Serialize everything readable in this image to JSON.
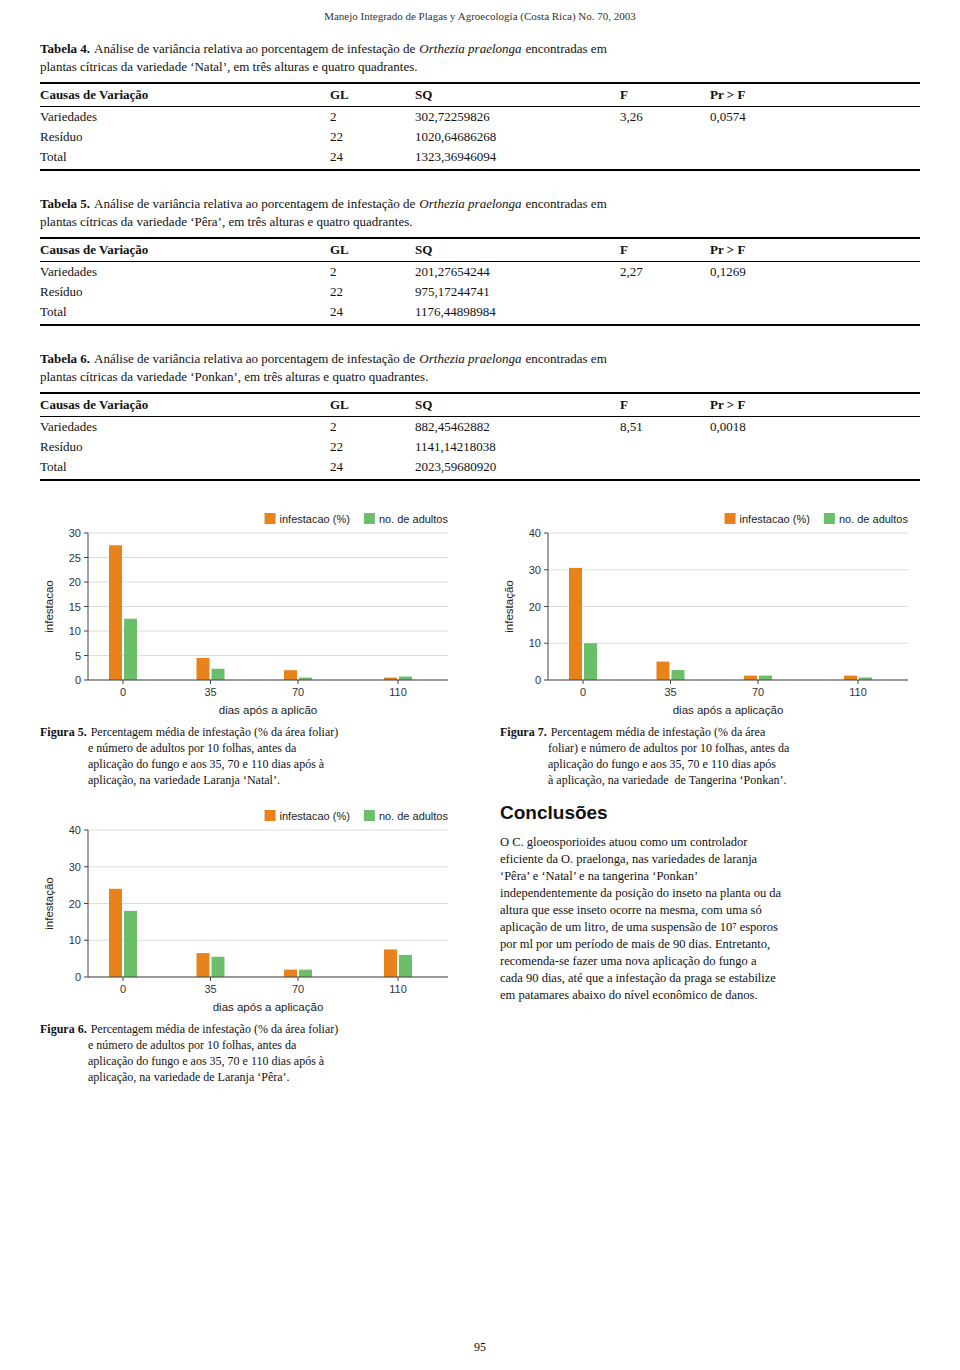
{
  "header": "Manejo Integrado de Plagas y Agroecología (Costa Rica) No. 70, 2003",
  "tables": [
    {
      "title_bold": "Tabela 4.",
      "title_text": "Análise de variância relativa ao porcentagem de infestação de",
      "title_italic": "Orthezia praelonga",
      "title_after": "encontradas em",
      "title_line2": "plantas cítricas da variedade ‘Natal’, em três alturas e quatro quadrantes.",
      "headers": [
        "Causas de Variação",
        "GL",
        "SQ",
        "F",
        "Pr > F"
      ],
      "rows": [
        [
          "Variedades",
          "2",
          "302,72259826",
          "3,26",
          "0,0574"
        ],
        [
          "Resíduo",
          "22",
          "1020,64686268",
          null,
          null
        ],
        [
          "Total",
          "24",
          "1323,36946094",
          null,
          null
        ]
      ]
    },
    {
      "title_bold": "Tabela 5.",
      "title_text": "Análise de variância relativa ao porcentagem de infestação de",
      "title_italic": "Orthezia praelonga",
      "title_after": "encontradas em",
      "title_line2": "plantas cítricas da variedade ‘Pêra’, em três alturas e quatro quadrantes.",
      "headers": [
        "Causas de Variação",
        "GL",
        "SQ",
        "F",
        "Pr > F"
      ],
      "rows": [
        [
          "Variedades",
          "2",
          "201,27654244",
          "2,27",
          "0,1269"
        ],
        [
          "Resíduo",
          "22",
          "975,17244741",
          null,
          null
        ],
        [
          "Total",
          "24",
          "1176,44898984",
          null,
          null
        ]
      ]
    },
    {
      "title_bold": "Tabela 6.",
      "title_text": "Análise de variância relativa ao porcentagem de infestação de",
      "title_italic": "Orthezia praelonga",
      "title_after": "encontradas em",
      "title_line2": "plantas cítricas da variedade ‘Ponkan’, em três alturas e quatro quadrantes.",
      "headers": [
        "Causas de Variação",
        "GL",
        "SQ",
        "F",
        "Pr > F"
      ],
      "rows": [
        [
          "Variedades",
          "2",
          "882,45462882",
          "8,51",
          "0,0018"
        ],
        [
          "Resíduo",
          "22",
          "1141,14218038",
          null,
          null
        ],
        [
          "Total",
          "24",
          "2023,59680920",
          null,
          null
        ]
      ]
    }
  ],
  "chart_data": [
    {
      "type": "bar",
      "xlabel": "dias após a aplicão",
      "ylabel": "infestacao",
      "x": [
        0,
        35,
        70,
        110
      ],
      "xlim": [
        -14,
        130
      ],
      "xticks": [
        0,
        35,
        70,
        110
      ],
      "ylim": [
        0,
        30
      ],
      "yticks": [
        0,
        5,
        10,
        15,
        20,
        25,
        30
      ],
      "grid": true,
      "legend": "upper right",
      "series": [
        {
          "name": "infestacao (%)",
          "color": "#E8821A",
          "values": [
            27.5,
            4.5,
            2.0,
            0.5
          ]
        },
        {
          "name": "no. de adultos",
          "color": "#6BBF6B",
          "values": [
            12.5,
            2.3,
            0.5,
            0.7
          ]
        }
      ],
      "caption_bold": "Figura 5.",
      "caption_lines": [
        "Percentagem média de infestação (% da área foliar)",
        "e número de adultos por 10 folhas, antes da",
        "aplicação do fungo e aos 35, 70 e 110 dias após à",
        "aplicação, na variedade Laranja ‘Natal’."
      ]
    },
    {
      "type": "bar",
      "xlabel": "dias após a aplicação",
      "ylabel": "infestação",
      "x": [
        0,
        35,
        70,
        110
      ],
      "xlim": [
        -14,
        130
      ],
      "xticks": [
        0,
        35,
        70,
        110
      ],
      "ylim": [
        0,
        40
      ],
      "yticks": [
        0,
        10,
        20,
        30,
        40
      ],
      "grid": true,
      "legend": "upper right",
      "series": [
        {
          "name": "infestacao (%)",
          "color": "#E8821A",
          "values": [
            24.0,
            6.5,
            2.0,
            7.5
          ]
        },
        {
          "name": "no. de adultos",
          "color": "#6BBF6B",
          "values": [
            18.0,
            5.5,
            2.0,
            6.0
          ]
        }
      ],
      "caption_bold": "Figura 6.",
      "caption_lines": [
        "Percentagem média de infestação (% da área foliar)",
        "e número de adultos por 10 folhas, antes da",
        "aplicação do fungo e aos 35, 70 e 110 dias após à",
        "aplicação, na variedade de Laranja ‘Pêra’."
      ]
    },
    {
      "type": "bar",
      "xlabel": "dias após a aplicação",
      "ylabel": "infestação",
      "x": [
        0,
        35,
        70,
        110
      ],
      "xlim": [
        -14,
        130
      ],
      "xticks": [
        0,
        35,
        70,
        110
      ],
      "ylim": [
        0,
        40
      ],
      "yticks": [
        0,
        10,
        20,
        30,
        40
      ],
      "grid": true,
      "legend": "upper right",
      "series": [
        {
          "name": "infestacao (%)",
          "color": "#E8821A",
          "values": [
            30.5,
            5.0,
            1.2,
            1.2
          ]
        },
        {
          "name": "no. de adultos",
          "color": "#6BBF6B",
          "values": [
            10.0,
            2.7,
            1.2,
            0.7
          ]
        }
      ],
      "caption_bold": "Figura 7.",
      "caption_lines": [
        "Percentagem média de infestação (% da área",
        "foliar) e número de adultos por 10 folhas, antes da",
        "aplicação do fungo e aos 35, 70 e 110 dias após",
        "à aplicação, na variedade  de Tangerina ‘Ponkan’."
      ]
    }
  ],
  "conclusions": {
    "title": "Conclusões",
    "lines": [
      "O C. gloeosporioides atuou como um controlador",
      "eficiente da O. praelonga, nas variedades de laranja",
      "‘Pêra’ e ‘Natal’ e na tangerina ‘Ponkan’",
      "independentemente da posição do inseto na planta ou da",
      "altura que esse inseto ocorre na mesma, com uma só",
      "aplicação de um litro, de uma suspensão de 10⁷ esporos",
      "por ml por um período de mais de 90 dias. Entretanto,",
      "recomenda-se fazer uma nova aplicação do fungo a",
      "cada 90 dias, até que a infestação da praga se estabilize",
      "em patamares abaixo do nível econômico de danos."
    ]
  },
  "page_number": "95"
}
